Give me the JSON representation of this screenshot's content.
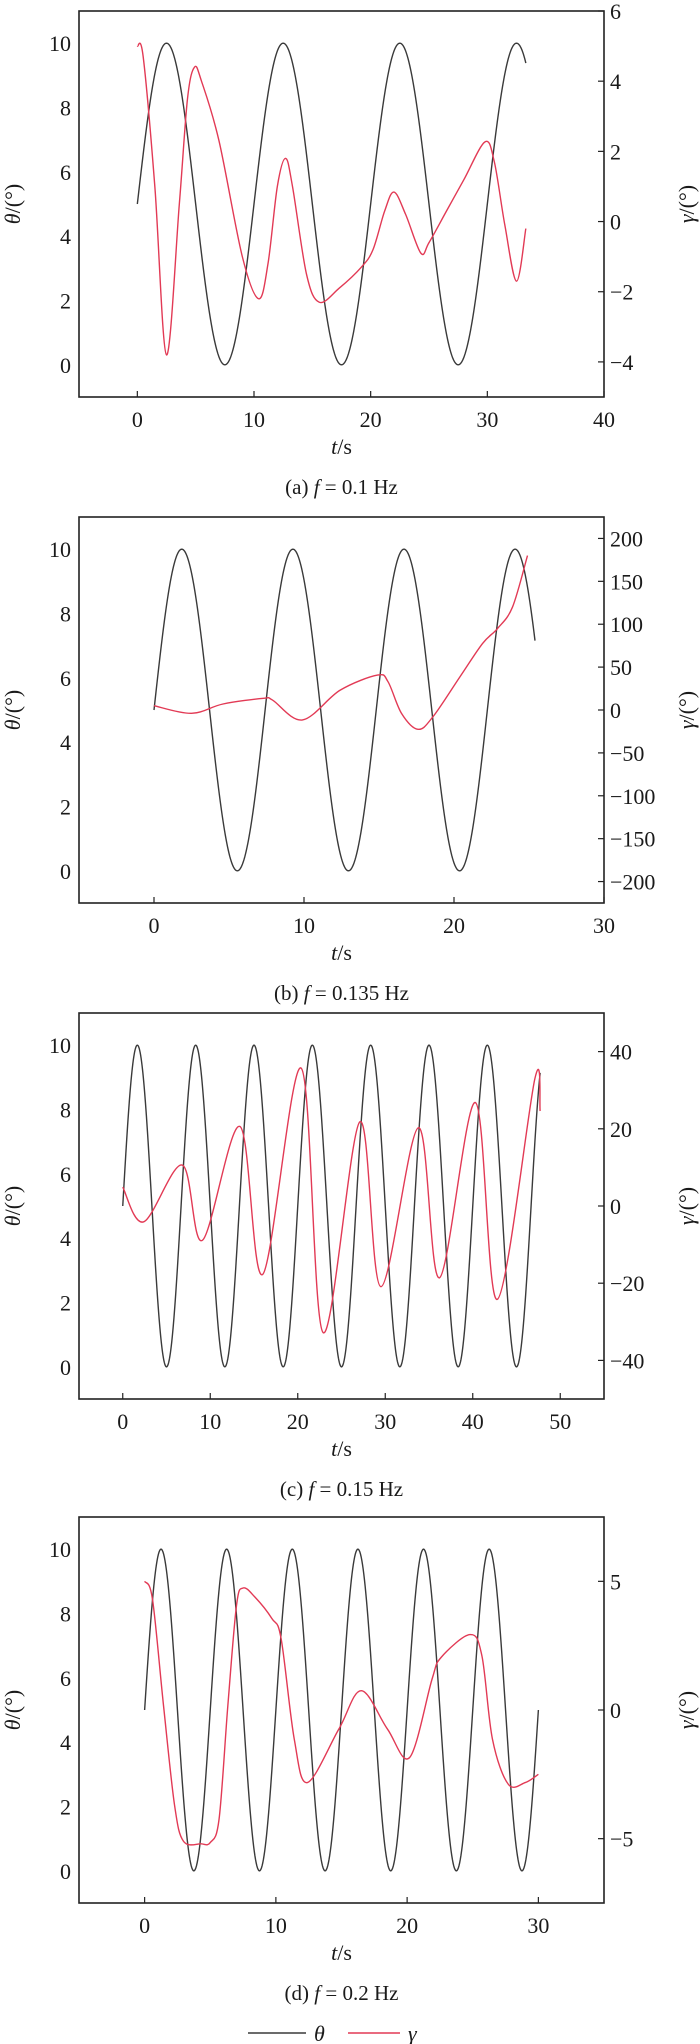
{
  "legend": [
    {
      "label": "θ",
      "color": "#3a3a3a"
    },
    {
      "label": "γ",
      "color": "#e23a55"
    }
  ],
  "axis_text": {
    "x_var": "t",
    "x_unit": "/s",
    "left_var": "θ",
    "left_unit": "/(°)",
    "right_var": "γ",
    "right_unit": "/(°)"
  },
  "chart_data": [
    {
      "type": "line",
      "caption_label": "(a)",
      "caption_var": "f",
      "caption_value": "= 0.1 Hz",
      "xlim": [
        -5,
        40
      ],
      "xticks": [
        0,
        10,
        20,
        30,
        40
      ],
      "ylim_left": [
        -1,
        11
      ],
      "yticks_left": [
        0,
        2,
        4,
        6,
        8,
        10
      ],
      "ylim_right": [
        -5,
        6
      ],
      "yticks_right": [
        -4,
        -2,
        0,
        2,
        4,
        6
      ],
      "theta": {
        "offset": 5,
        "amplitude": 5,
        "frequency_hz": 0.1,
        "t_end": 33.3
      },
      "gamma": [
        [
          0,
          5.0
        ],
        [
          0.5,
          4.7
        ],
        [
          1.5,
          1.0
        ],
        [
          2.5,
          -3.8
        ],
        [
          3.6,
          0.5
        ],
        [
          4.3,
          3.5
        ],
        [
          4.9,
          4.4
        ],
        [
          5.5,
          4.0
        ],
        [
          7,
          2.3
        ],
        [
          9,
          -1.0
        ],
        [
          10.4,
          -2.2
        ],
        [
          11.2,
          -1.2
        ],
        [
          12,
          1.0
        ],
        [
          12.7,
          1.8
        ],
        [
          13.3,
          1.0
        ],
        [
          14.5,
          -1.5
        ],
        [
          15.6,
          -2.3
        ],
        [
          17.3,
          -1.9
        ],
        [
          19.2,
          -1.3
        ],
        [
          20.2,
          -0.8
        ],
        [
          21.2,
          0.3
        ],
        [
          22,
          0.84
        ],
        [
          23,
          0.2
        ],
        [
          24.3,
          -0.9
        ],
        [
          25,
          -0.6
        ],
        [
          26.5,
          0.3
        ],
        [
          28,
          1.2
        ],
        [
          29.8,
          2.27
        ],
        [
          30.6,
          1.7
        ],
        [
          31.5,
          -0.1
        ],
        [
          32.5,
          -1.7
        ],
        [
          33.3,
          -0.2
        ]
      ]
    },
    {
      "type": "line",
      "caption_label": "(b)",
      "caption_var": "f",
      "caption_value": "= 0.135 Hz",
      "xlim": [
        -5,
        30
      ],
      "xticks": [
        0,
        10,
        20,
        30
      ],
      "ylim_left": [
        -1,
        11
      ],
      "yticks_left": [
        0,
        2,
        4,
        6,
        8,
        10
      ],
      "ylim_right": [
        -225,
        225
      ],
      "yticks_right": [
        -200,
        -150,
        -100,
        -50,
        0,
        50,
        100,
        150,
        200
      ],
      "theta": {
        "offset": 5,
        "amplitude": 5,
        "frequency_hz": 0.135,
        "t_end": 25.4
      },
      "gamma": [
        [
          0,
          5
        ],
        [
          2.5,
          -3.9
        ],
        [
          4.6,
          7
        ],
        [
          7.3,
          13.6
        ],
        [
          7.9,
          11.6
        ],
        [
          9.9,
          -11.6
        ],
        [
          12.4,
          23
        ],
        [
          14.9,
          40.7
        ],
        [
          15.6,
          33
        ],
        [
          16.5,
          -3.9
        ],
        [
          17.6,
          -22.5
        ],
        [
          18.6,
          -7.8
        ],
        [
          20.4,
          38.8
        ],
        [
          21.9,
          77.5
        ],
        [
          22.9,
          95
        ],
        [
          23.9,
          120
        ],
        [
          24.9,
          180
        ]
      ]
    },
    {
      "type": "line",
      "caption_label": "(c)",
      "caption_var": "f",
      "caption_value": "= 0.15 Hz",
      "xlim": [
        -5,
        55
      ],
      "xticks": [
        0,
        10,
        20,
        30,
        40,
        50
      ],
      "ylim_left": [
        -1,
        11
      ],
      "yticks_left": [
        0,
        2,
        4,
        6,
        8,
        10
      ],
      "ylim_right": [
        -50,
        50
      ],
      "yticks_right": [
        -40,
        -20,
        0,
        20,
        40
      ],
      "theta": {
        "offset": 5,
        "amplitude": 5,
        "frequency_hz": 0.15,
        "t_end": 47.7
      },
      "gamma": [
        [
          0,
          4.9
        ],
        [
          2.4,
          -4.1
        ],
        [
          6.8,
          10.6
        ],
        [
          9.1,
          -8.9
        ],
        [
          13.4,
          20.6
        ],
        [
          16.0,
          -17.7
        ],
        [
          20.4,
          35.7
        ],
        [
          22.9,
          -32.8
        ],
        [
          27.1,
          21.8
        ],
        [
          29.5,
          -20.9
        ],
        [
          33.8,
          20.3
        ],
        [
          36.2,
          -18.6
        ],
        [
          40.3,
          26.8
        ],
        [
          42.8,
          -24.2
        ],
        [
          47.1,
          33
        ],
        [
          47.7,
          24.6
        ]
      ]
    },
    {
      "type": "line",
      "caption_label": "(d)",
      "caption_var": "f",
      "caption_value": "= 0.2 Hz",
      "xlim": [
        -5,
        35
      ],
      "xticks": [
        0,
        10,
        20,
        30
      ],
      "ylim_left": [
        -1,
        11
      ],
      "yticks_left": [
        0,
        2,
        4,
        6,
        8,
        10
      ],
      "ylim_right": [
        -7.5,
        7.5
      ],
      "yticks_right": [
        -5,
        0,
        5
      ],
      "theta": {
        "offset": 5,
        "amplitude": 5,
        "frequency_hz": 0.2,
        "t_end": 30.0
      },
      "gamma": [
        [
          0,
          5.0
        ],
        [
          0.6,
          4.3
        ],
        [
          1.44,
          0.17
        ],
        [
          2.28,
          -3.7
        ],
        [
          2.96,
          -5.1
        ],
        [
          4.3,
          -5.2
        ],
        [
          5.0,
          -5.15
        ],
        [
          5.67,
          -4.25
        ],
        [
          6.34,
          0.17
        ],
        [
          7.0,
          4.06
        ],
        [
          7.5,
          4.74
        ],
        [
          8.4,
          4.39
        ],
        [
          9.7,
          3.55
        ],
        [
          10.4,
          2.77
        ],
        [
          11.4,
          -1.13
        ],
        [
          12.4,
          -2.82
        ],
        [
          14.8,
          -0.74
        ],
        [
          16.5,
          0.75
        ],
        [
          18.5,
          -0.74
        ],
        [
          20.2,
          -1.84
        ],
        [
          21.9,
          1.2
        ],
        [
          22.6,
          2.05
        ],
        [
          24.8,
          2.93
        ],
        [
          25.7,
          2.1
        ],
        [
          26.5,
          -1.13
        ],
        [
          27.7,
          -2.88
        ],
        [
          29.0,
          -2.82
        ],
        [
          30.0,
          -2.5
        ]
      ]
    }
  ]
}
